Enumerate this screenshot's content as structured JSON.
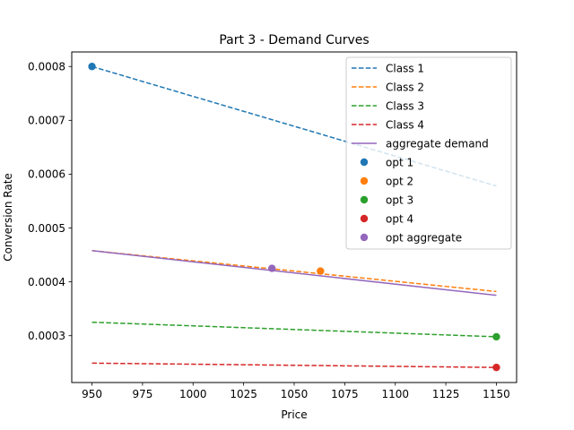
{
  "chart_data": {
    "type": "line",
    "title": "Part 3 - Demand Curves",
    "xlabel": "Price",
    "ylabel": "Conversion Rate",
    "xlim": [
      940,
      1160
    ],
    "ylim": [
      0.000213,
      0.000827
    ],
    "xticks": [
      950,
      975,
      1000,
      1025,
      1050,
      1075,
      1100,
      1125,
      1150
    ],
    "xtick_labels": [
      "950",
      "975",
      "1000",
      "1025",
      "1050",
      "1075",
      "1100",
      "1125",
      "1150"
    ],
    "yticks": [
      0.0003,
      0.0004,
      0.0005,
      0.0006,
      0.0007,
      0.0008
    ],
    "ytick_labels": [
      "0.0003",
      "0.0004",
      "0.0005",
      "0.0006",
      "0.0007",
      "0.0008"
    ],
    "grid": false,
    "legend_position": "top-right",
    "series": [
      {
        "name": "Class 1",
        "style": "dashed",
        "color": "#1f77b4",
        "x": [
          950,
          1150
        ],
        "y": [
          0.0008,
          0.000578
        ]
      },
      {
        "name": "Class 2",
        "style": "dashed",
        "color": "#ff7f0e",
        "x": [
          950,
          1150
        ],
        "y": [
          0.000458,
          0.000382
        ]
      },
      {
        "name": "Class 3",
        "style": "dashed",
        "color": "#2ca02c",
        "x": [
          950,
          1150
        ],
        "y": [
          0.000325,
          0.000298
        ]
      },
      {
        "name": "Class 4",
        "style": "dashed",
        "color": "#d62728",
        "x": [
          950,
          1150
        ],
        "y": [
          0.000249,
          0.000241
        ]
      },
      {
        "name": "aggregate demand",
        "style": "solid",
        "color": "#9467bd",
        "x": [
          950,
          1150
        ],
        "y": [
          0.000458,
          0.000375
        ]
      }
    ],
    "points": [
      {
        "name": "opt 1",
        "color": "#1f77b4",
        "x": 950,
        "y": 0.0008
      },
      {
        "name": "opt 2",
        "color": "#ff7f0e",
        "x": 1063,
        "y": 0.00042
      },
      {
        "name": "opt 3",
        "color": "#2ca02c",
        "x": 1150,
        "y": 0.000298
      },
      {
        "name": "opt 4",
        "color": "#d62728",
        "x": 1150,
        "y": 0.000241
      },
      {
        "name": "opt aggregate",
        "color": "#9467bd",
        "x": 1039,
        "y": 0.000425
      }
    ]
  }
}
